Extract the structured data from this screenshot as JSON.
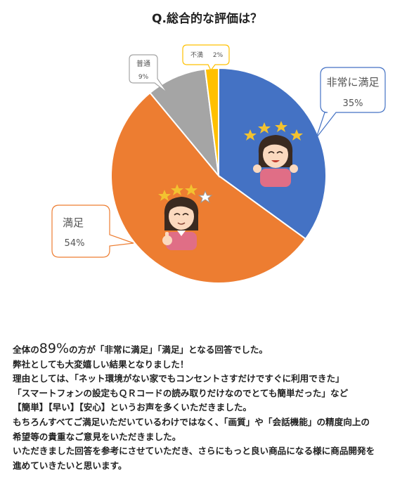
{
  "chart_data": {
    "type": "pie",
    "title": "Q.総合的な評価は？",
    "slices": [
      {
        "label": "非常に満足",
        "value": 35,
        "value_label": "35%",
        "color": "#4472C4"
      },
      {
        "label": "満足",
        "value": 54,
        "value_label": "54%",
        "color": "#ED7D31"
      },
      {
        "label": "普通",
        "value": 9,
        "value_label": "9%",
        "color": "#A5A5A5"
      },
      {
        "label": "不満",
        "value": 2,
        "value_label": "2%",
        "color": "#FFC000"
      }
    ]
  },
  "illustrations": [
    "smiling-woman-with-stars",
    "smiling-woman-with-stars"
  ],
  "body": {
    "line1_prefix": "全体の",
    "line1_highlight": "89%",
    "line1_suffix": "の方が「非常に満足」「満足」となる回答でした。",
    "lines": [
      "弊社としても大変嬉しい結果となりました！",
      "理由としては、「ネット環境がない家でもコンセントさすだけですぐに利用できた」",
      "「スマートフォンの設定もＱＲコードの読み取りだけなのでとても簡単だった」など",
      "【簡単】【早い】【安心】というお声を多くいただきました。",
      "もちろんすべてご満足いただいているわけではなく、「画質」や「会話機能」の精度向上の",
      "希望等の貴重なご意見をいただきました。",
      "いただきました回答を参考にさせていただき、さらにもっと良い商品になる様に商品開発を",
      "進めていきたいと思います。"
    ]
  }
}
